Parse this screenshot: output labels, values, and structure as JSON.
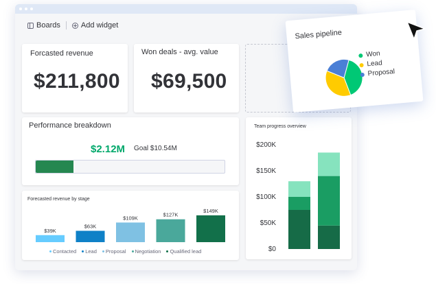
{
  "toolbar": {
    "boards_label": "Boards",
    "add_widget_label": "Add widget"
  },
  "forecasted_revenue": {
    "title": "Forcasted revenue",
    "value": "$211,800"
  },
  "won_deals": {
    "title": "Won deals - avg. value",
    "value": "$69,500"
  },
  "performance": {
    "title": "Performance breakdown",
    "value": "$2.12M",
    "goal": "Goal $10.54M",
    "progress": 0.2
  },
  "colors": {
    "won": "#00c875",
    "lead": "#ffcb00",
    "proposal": "#4a7fd6",
    "progress": "#258750"
  },
  "chart_data": [
    {
      "type": "bar",
      "title": "Forecasted revenue by stage",
      "categories": [
        "Contacted",
        "Lead",
        "Proposal",
        "Negotiation",
        "Qualified lead"
      ],
      "values": [
        39,
        63,
        109,
        127,
        149
      ],
      "value_labels": [
        "$39K",
        "$63K",
        "$109K",
        "$127K",
        "$149K"
      ],
      "colors": [
        "#66ccff",
        "#0f81c7",
        "#7fc1e3",
        "#4aa89b",
        "#12704a"
      ],
      "legend": [
        "Contacted",
        "Lead",
        "Proposal",
        "Negotiation",
        "Qualified lead"
      ],
      "ylim": [
        0,
        160
      ]
    },
    {
      "type": "bar",
      "stacked": true,
      "title": "Team progress overview",
      "categories": [
        "",
        ""
      ],
      "series": [
        {
          "values": [
            75,
            45
          ],
          "color": "#166b47"
        },
        {
          "values": [
            25,
            95
          ],
          "color": "#1a9d63"
        },
        {
          "values": [
            30,
            45
          ],
          "color": "#86e3be"
        }
      ],
      "y_ticks": [
        "$0",
        "$50K",
        "$100K",
        "$150K",
        "$200K"
      ],
      "ylim": [
        0,
        200
      ]
    },
    {
      "type": "pie",
      "title": "Sales pipeline",
      "categories": [
        "Won",
        "Lead",
        "Proposal"
      ],
      "values": [
        40,
        37,
        23
      ],
      "colors": [
        "#00c875",
        "#ffcb00",
        "#4a7fd6"
      ]
    }
  ]
}
